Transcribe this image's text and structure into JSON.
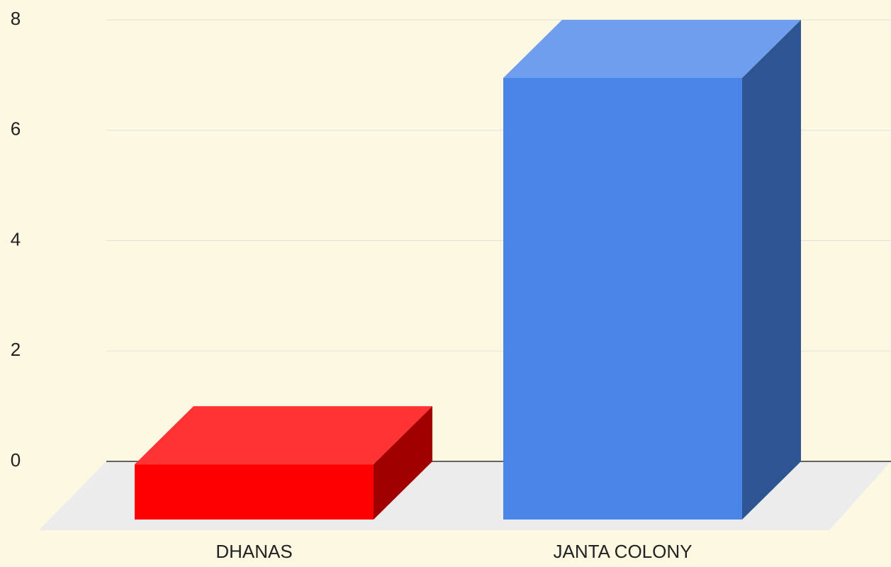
{
  "chart_data": {
    "type": "bar3d",
    "categories": [
      "DHANAS",
      "JANTA COLONY"
    ],
    "values": [
      1,
      8
    ],
    "colors": [
      "#ff0000",
      "#4a86e8"
    ],
    "ylim": [
      0,
      8
    ],
    "yticks": [
      0,
      2,
      4,
      6,
      8
    ],
    "grid": true
  }
}
